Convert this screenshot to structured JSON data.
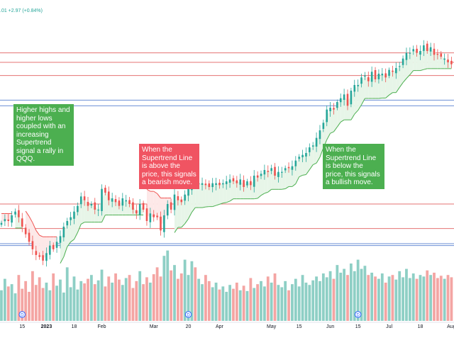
{
  "chart_data": {
    "type": "candlestick",
    "title": "",
    "ohlc_change": ".01  +2.97 (+0.84%)",
    "colors": {
      "up": "#26a69a",
      "down": "#ef5350",
      "supertrend_up": "#4caf50",
      "supertrend_down": "#ef5350",
      "fill_up": "#e7f5e8",
      "fill_down": "#fde8e8",
      "resistance_line": "#e57373",
      "support_line": "#6b8fd6",
      "volume_up": "#8ecfc5",
      "volume_down": "#f4a5a3"
    },
    "price_range": [
      250,
      385
    ],
    "resistance_levels": [
      372,
      367,
      360,
      292,
      279
    ],
    "support_levels": [
      347,
      344,
      271,
      270
    ],
    "x_ticks": [
      {
        "label": "15",
        "bar": 6,
        "bold": false
      },
      {
        "label": "2023",
        "bar": 13,
        "bold": true
      },
      {
        "label": "18",
        "bar": 21,
        "bold": false
      },
      {
        "label": "Feb",
        "bar": 29,
        "bold": false
      },
      {
        "label": "Mar",
        "bar": 44,
        "bold": false
      },
      {
        "label": "20",
        "bar": 54,
        "bold": false
      },
      {
        "label": "Apr",
        "bar": 63,
        "bold": false
      },
      {
        "label": "May",
        "bar": 78,
        "bold": false
      },
      {
        "label": "15",
        "bar": 86,
        "bold": false
      },
      {
        "label": "Jun",
        "bar": 95,
        "bold": false
      },
      {
        "label": "15",
        "bar": 103,
        "bold": false
      },
      {
        "label": "Jul",
        "bar": 112,
        "bold": false
      },
      {
        "label": "18",
        "bar": 121,
        "bold": false
      },
      {
        "label": "Aug",
        "bar": 130,
        "bold": false
      }
    ],
    "dividend_markers": [
      {
        "label": "D",
        "bar": 6
      },
      {
        "label": "D",
        "bar": 54
      },
      {
        "label": "D",
        "bar": 103
      }
    ],
    "closes": [
      282,
      284,
      283,
      286,
      288,
      285,
      280,
      276,
      272,
      268,
      265,
      264,
      262,
      266,
      270,
      268,
      272,
      275,
      280,
      283,
      285,
      288,
      291,
      296,
      294,
      291,
      292,
      289,
      289,
      300,
      298,
      294,
      295,
      293,
      291,
      295,
      294,
      292,
      289,
      287,
      292,
      289,
      283,
      287,
      285,
      285,
      278,
      286,
      292,
      289,
      297,
      294,
      293,
      297,
      300,
      305,
      302,
      303,
      303,
      302,
      301,
      303,
      303,
      302,
      303,
      304,
      305,
      304,
      303,
      305,
      301,
      304,
      302,
      307,
      306,
      308,
      310,
      309,
      311,
      307,
      309,
      309,
      311,
      311,
      312,
      315,
      317,
      318,
      319,
      322,
      323,
      327,
      331,
      335,
      342,
      343,
      342,
      346,
      348,
      350,
      344,
      352,
      355,
      355,
      359,
      360,
      357,
      362,
      358,
      361,
      361,
      359,
      363,
      362,
      364,
      365,
      369,
      372,
      372,
      374,
      372,
      373,
      376,
      373,
      375,
      371,
      371,
      370,
      369,
      367,
      366
    ],
    "volumes": [
      0.4,
      0.55,
      0.45,
      0.48,
      0.36,
      0.6,
      0.42,
      0.52,
      0.38,
      0.65,
      0.47,
      0.57,
      0.43,
      0.5,
      0.4,
      0.62,
      0.46,
      0.54,
      0.37,
      0.7,
      0.44,
      0.58,
      0.41,
      0.52,
      0.49,
      0.55,
      0.6,
      0.48,
      0.53,
      0.67,
      0.45,
      0.58,
      0.5,
      0.62,
      0.54,
      0.47,
      0.56,
      0.6,
      0.43,
      0.52,
      0.65,
      0.48,
      0.57,
      0.5,
      0.61,
      0.7,
      0.58,
      0.85,
      0.92,
      0.66,
      0.73,
      0.55,
      0.62,
      0.8,
      0.6,
      0.78,
      0.7,
      0.55,
      0.48,
      0.6,
      0.52,
      0.44,
      0.5,
      0.41,
      0.45,
      0.38,
      0.47,
      0.42,
      0.5,
      0.4,
      0.46,
      0.39,
      0.56,
      0.43,
      0.48,
      0.52,
      0.45,
      0.58,
      0.5,
      0.62,
      0.47,
      0.44,
      0.52,
      0.4,
      0.48,
      0.55,
      0.45,
      0.6,
      0.5,
      0.47,
      0.53,
      0.58,
      0.52,
      0.62,
      0.57,
      0.65,
      0.55,
      0.73,
      0.63,
      0.68,
      0.6,
      0.75,
      0.65,
      0.8,
      0.68,
      0.72,
      0.6,
      0.63,
      0.58,
      0.55,
      0.62,
      0.5,
      0.58,
      0.6,
      0.54,
      0.65,
      0.57,
      0.68,
      0.56,
      0.62,
      0.55,
      0.6,
      0.58,
      0.66,
      0.6,
      0.63,
      0.56,
      0.59,
      0.55,
      0.6,
      0.57
    ],
    "annotations": [
      {
        "text": "Higher highs and higher lows coupled with an increasing Supertrend signal a rally in QQQ.",
        "color": "green"
      },
      {
        "text": "When the Supertrend Line is above the price, this signals a bearish move.",
        "color": "red"
      },
      {
        "text": "When the Supertrend Line is below the price, this signals a bullish move.",
        "color": "green"
      }
    ]
  }
}
